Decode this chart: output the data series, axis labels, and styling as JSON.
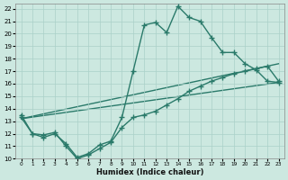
{
  "xlabel": "Humidex (Indice chaleur)",
  "bg_color": "#cce8e0",
  "line_color": "#2a7a6a",
  "grid_color": "#aad0c8",
  "xlim": [
    -0.5,
    23.5
  ],
  "ylim": [
    10,
    22.4
  ],
  "yticks": [
    10,
    11,
    12,
    13,
    14,
    15,
    16,
    17,
    18,
    19,
    20,
    21,
    22
  ],
  "xticks": [
    0,
    1,
    2,
    3,
    4,
    5,
    6,
    7,
    8,
    9,
    10,
    11,
    12,
    13,
    14,
    15,
    16,
    17,
    18,
    19,
    20,
    21,
    22,
    23
  ],
  "line1_x": [
    0,
    1,
    2,
    3,
    4,
    5,
    6,
    7,
    8,
    9,
    10,
    11,
    12,
    13,
    14,
    15,
    16,
    17,
    18,
    19,
    20,
    21,
    22,
    23
  ],
  "line1_y": [
    13.5,
    12.0,
    11.7,
    12.0,
    11.2,
    10.1,
    10.4,
    11.1,
    11.4,
    13.3,
    17.0,
    20.7,
    20.9,
    20.1,
    22.2,
    21.3,
    21.0,
    19.7,
    18.5,
    18.5,
    17.6,
    17.1,
    16.2,
    16.1
  ],
  "line2_x": [
    0,
    1,
    2,
    3,
    4,
    5,
    6,
    7,
    8,
    9,
    10,
    11,
    12,
    13,
    14,
    15,
    16,
    17,
    18,
    19,
    20,
    21,
    22,
    23
  ],
  "line2_y": [
    13.3,
    12.0,
    11.9,
    12.1,
    11.0,
    10.0,
    10.3,
    10.8,
    11.3,
    12.5,
    13.3,
    13.5,
    13.8,
    14.3,
    14.8,
    15.4,
    15.8,
    16.2,
    16.5,
    16.8,
    17.0,
    17.2,
    17.4,
    16.2
  ],
  "line3_x": [
    0,
    23
  ],
  "line3_y": [
    13.2,
    16.1
  ],
  "line4_x": [
    0,
    23
  ],
  "line4_y": [
    13.2,
    17.6
  ],
  "marker_size": 2.5,
  "lw": 1.0
}
